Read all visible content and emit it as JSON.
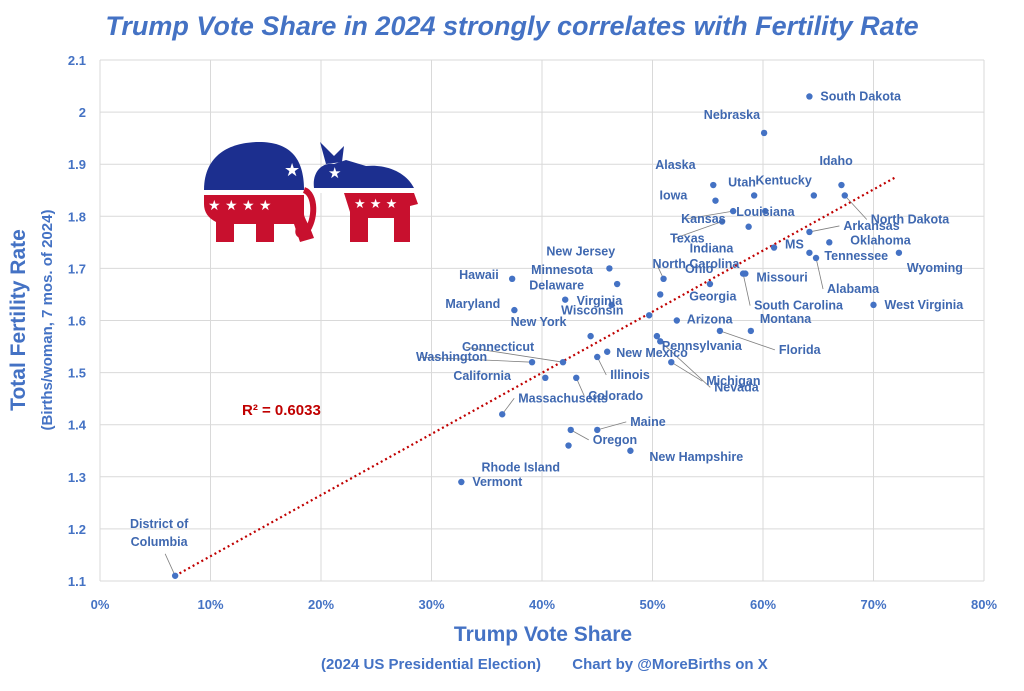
{
  "chart_data": {
    "type": "scatter",
    "title": "Trump Vote Share in 2024 strongly correlates with Fertility Rate",
    "xlabel": "Trump Vote Share",
    "ylabel": "Total Fertility Rate",
    "ylabel_sub": "(Births/woman, 7 mos. of 2024)",
    "subtitle_left": "(2024 US Presidential Election)",
    "subtitle_right": "Chart by @MoreBirths on X",
    "xlim": [
      0,
      0.8
    ],
    "ylim": [
      1.1,
      2.1
    ],
    "xticks": [
      0,
      0.1,
      0.2,
      0.3,
      0.4,
      0.5,
      0.6,
      0.7,
      0.8
    ],
    "xtick_labels": [
      "0%",
      "10%",
      "20%",
      "30%",
      "40%",
      "50%",
      "60%",
      "70%",
      "80%"
    ],
    "yticks": [
      1.1,
      1.2,
      1.3,
      1.4,
      1.5,
      1.6,
      1.7,
      1.8,
      1.9,
      2.0,
      2.1
    ],
    "ytick_labels": [
      "1.1",
      "1.2",
      "1.3",
      "1.4",
      "1.5",
      "1.6",
      "1.7",
      "1.8",
      "1.9",
      "2",
      "2.1"
    ],
    "grid": true,
    "annotation": "R² = 0.6033",
    "trendline": {
      "x": [
        0.068,
        0.72
      ],
      "y": [
        1.11,
        1.875
      ]
    },
    "points": [
      {
        "name": "South Dakota",
        "x": 0.642,
        "y": 2.03
      },
      {
        "name": "Nebraska",
        "x": 0.601,
        "y": 1.96
      },
      {
        "name": "Idaho",
        "x": 0.671,
        "y": 1.86
      },
      {
        "name": "North Dakota",
        "x": 0.674,
        "y": 1.84
      },
      {
        "name": "Kentucky",
        "x": 0.646,
        "y": 1.84
      },
      {
        "name": "Alaska",
        "x": 0.555,
        "y": 1.86
      },
      {
        "name": "Utah",
        "x": 0.592,
        "y": 1.84
      },
      {
        "name": "Iowa",
        "x": 0.557,
        "y": 1.83
      },
      {
        "name": "Kansas",
        "x": 0.573,
        "y": 1.81
      },
      {
        "name": "Louisiana",
        "x": 0.602,
        "y": 1.81
      },
      {
        "name": "Texas",
        "x": 0.563,
        "y": 1.79
      },
      {
        "name": "Indiana",
        "x": 0.587,
        "y": 1.78
      },
      {
        "name": "Arkansas",
        "x": 0.642,
        "y": 1.77
      },
      {
        "name": "Oklahoma",
        "x": 0.66,
        "y": 1.75
      },
      {
        "name": "MS",
        "x": 0.61,
        "y": 1.74
      },
      {
        "name": "Tennessee",
        "x": 0.642,
        "y": 1.73
      },
      {
        "name": "Alabama",
        "x": 0.648,
        "y": 1.72
      },
      {
        "name": "Wyoming",
        "x": 0.723,
        "y": 1.73
      },
      {
        "name": "North Carolina",
        "x": 0.51,
        "y": 1.68
      },
      {
        "name": "New Jersey",
        "x": 0.461,
        "y": 1.7
      },
      {
        "name": "Minnesota",
        "x": 0.468,
        "y": 1.67
      },
      {
        "name": "Ohio",
        "x": 0.552,
        "y": 1.67
      },
      {
        "name": "Missouri",
        "x": 0.584,
        "y": 1.69
      },
      {
        "name": "South Carolina",
        "x": 0.582,
        "y": 1.69
      },
      {
        "name": "Hawaii",
        "x": 0.373,
        "y": 1.68
      },
      {
        "name": "Delaware",
        "x": 0.421,
        "y": 1.64
      },
      {
        "name": "Virginia",
        "x": 0.463,
        "y": 1.63
      },
      {
        "name": "Georgia",
        "x": 0.507,
        "y": 1.65
      },
      {
        "name": "Maryland",
        "x": 0.375,
        "y": 1.62
      },
      {
        "name": "West Virginia",
        "x": 0.7,
        "y": 1.63
      },
      {
        "name": "Wisconsin",
        "x": 0.497,
        "y": 1.61
      },
      {
        "name": "Arizona",
        "x": 0.522,
        "y": 1.6
      },
      {
        "name": "Montana",
        "x": 0.589,
        "y": 1.58
      },
      {
        "name": "Florida",
        "x": 0.561,
        "y": 1.58
      },
      {
        "name": "New York",
        "x": 0.444,
        "y": 1.57
      },
      {
        "name": "Pennsylvania",
        "x": 0.504,
        "y": 1.57
      },
      {
        "name": "Connecticut",
        "x": 0.419,
        "y": 1.52
      },
      {
        "name": "New Mexico",
        "x": 0.459,
        "y": 1.54
      },
      {
        "name": "Michigan",
        "x": 0.517,
        "y": 1.52
      },
      {
        "name": "Nevada",
        "x": 0.507,
        "y": 1.56
      },
      {
        "name": "Washington",
        "x": 0.391,
        "y": 1.52
      },
      {
        "name": "Illinois",
        "x": 0.45,
        "y": 1.53
      },
      {
        "name": "California",
        "x": 0.403,
        "y": 1.49
      },
      {
        "name": "Colorado",
        "x": 0.431,
        "y": 1.49
      },
      {
        "name": "Massachusetts",
        "x": 0.364,
        "y": 1.42
      },
      {
        "name": "Maine",
        "x": 0.45,
        "y": 1.39
      },
      {
        "name": "Oregon",
        "x": 0.426,
        "y": 1.39
      },
      {
        "name": "Rhode Island",
        "x": 0.424,
        "y": 1.36
      },
      {
        "name": "New Hampshire",
        "x": 0.48,
        "y": 1.35
      },
      {
        "name": "Vermont",
        "x": 0.327,
        "y": 1.29
      },
      {
        "name": "District of Columbia",
        "x": 0.068,
        "y": 1.11
      }
    ]
  },
  "logo": {
    "name": "Republican elephant and Democratic donkey",
    "red": "#c8102e",
    "blue": "#1c2f8f",
    "white": "#ffffff"
  },
  "colors": {
    "accent": "#4472c4",
    "trend": "#c00000"
  }
}
